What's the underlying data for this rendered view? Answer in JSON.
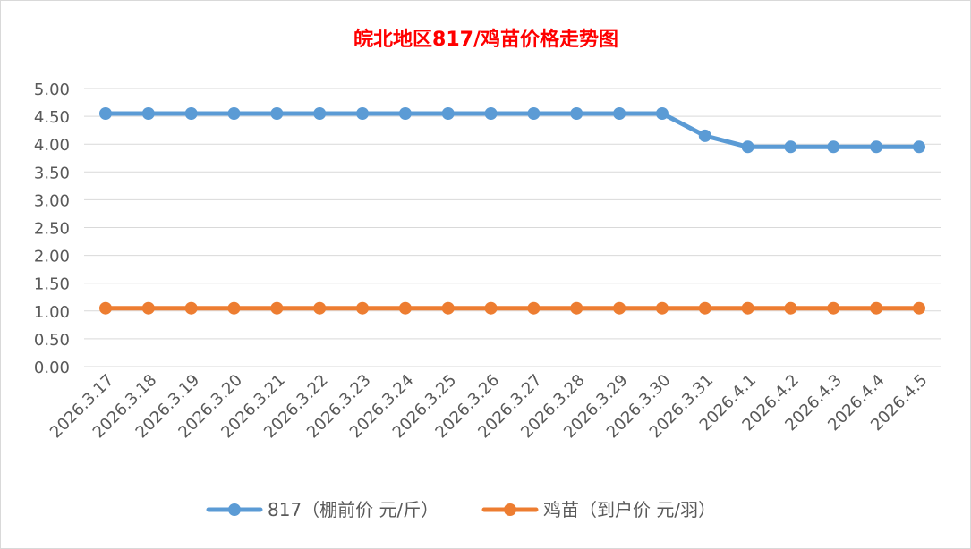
{
  "chart_data": {
    "type": "line",
    "title": "皖北地区817/鸡苗价格走势图",
    "title_color": "#ff0000",
    "categories": [
      "2026.3.17",
      "2026.3.18",
      "2026.3.19",
      "2026.3.20",
      "2026.3.21",
      "2026.3.22",
      "2026.3.23",
      "2026.3.24",
      "2026.3.25",
      "2026.3.26",
      "2026.3.27",
      "2026.3.28",
      "2026.3.29",
      "2026.3.30",
      "2026.3.31",
      "2026.4.1",
      "2026.4.2",
      "2026.4.3",
      "2026.4.4",
      "2026.4.5"
    ],
    "series": [
      {
        "name": "817（棚前价 元/斤）",
        "color": "#5b9bd5",
        "values": [
          4.55,
          4.55,
          4.55,
          4.55,
          4.55,
          4.55,
          4.55,
          4.55,
          4.55,
          4.55,
          4.55,
          4.55,
          4.55,
          4.55,
          4.15,
          3.95,
          3.95,
          3.95,
          3.95,
          3.95
        ]
      },
      {
        "name": "鸡苗（到户价 元/羽）",
        "color": "#ed7d31",
        "values": [
          1.05,
          1.05,
          1.05,
          1.05,
          1.05,
          1.05,
          1.05,
          1.05,
          1.05,
          1.05,
          1.05,
          1.05,
          1.05,
          1.05,
          1.05,
          1.05,
          1.05,
          1.05,
          1.05,
          1.05
        ]
      }
    ],
    "yticks": [
      "0.00",
      "0.50",
      "1.00",
      "1.50",
      "2.00",
      "2.50",
      "3.00",
      "3.50",
      "4.00",
      "4.50",
      "5.00"
    ],
    "ylim": [
      0,
      5
    ],
    "grid": true,
    "legend": "bottom",
    "xlabel": "",
    "ylabel": ""
  }
}
